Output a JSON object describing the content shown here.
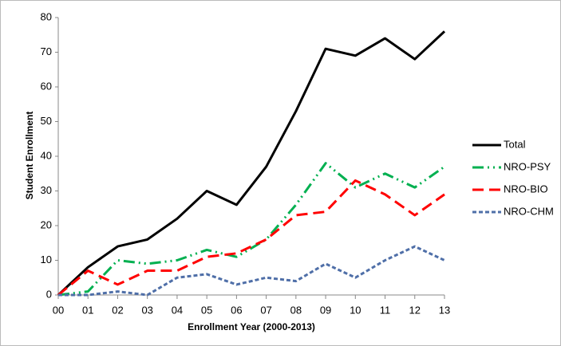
{
  "chart_data": {
    "type": "line",
    "x_label": "Enrollment Year (2000-2013)",
    "y_label": "Student Enrollment",
    "categories": [
      "00",
      "01",
      "02",
      "03",
      "04",
      "05",
      "06",
      "07",
      "08",
      "09",
      "10",
      "11",
      "12",
      "13"
    ],
    "series": [
      {
        "name": "Total",
        "color": "#000000",
        "dash": "solid",
        "values": [
          0,
          8,
          14,
          16,
          22,
          30,
          26,
          37,
          53,
          71,
          69,
          74,
          68,
          76
        ]
      },
      {
        "name": "NRO-PSY",
        "color": "#00b050",
        "dash": "dashdot",
        "values": [
          0,
          1,
          10,
          9,
          10,
          13,
          11,
          16,
          26,
          38,
          31,
          35,
          31,
          37
        ]
      },
      {
        "name": "NRO-BIO",
        "color": "#ff0000",
        "dash": "dash",
        "values": [
          0,
          7,
          3,
          7,
          7,
          11,
          12,
          16,
          23,
          24,
          33,
          29,
          23,
          29
        ]
      },
      {
        "name": "NRO-CHM",
        "color": "#4f6fa8",
        "dash": "dot",
        "values": [
          0,
          0,
          1,
          0,
          5,
          6,
          3,
          5,
          4,
          9,
          5,
          10,
          14,
          10
        ]
      }
    ],
    "ylim": [
      0,
      80
    ],
    "yticks": [
      0,
      10,
      20,
      30,
      40,
      50,
      60,
      70,
      80
    ],
    "grid": false,
    "legend": "right"
  }
}
